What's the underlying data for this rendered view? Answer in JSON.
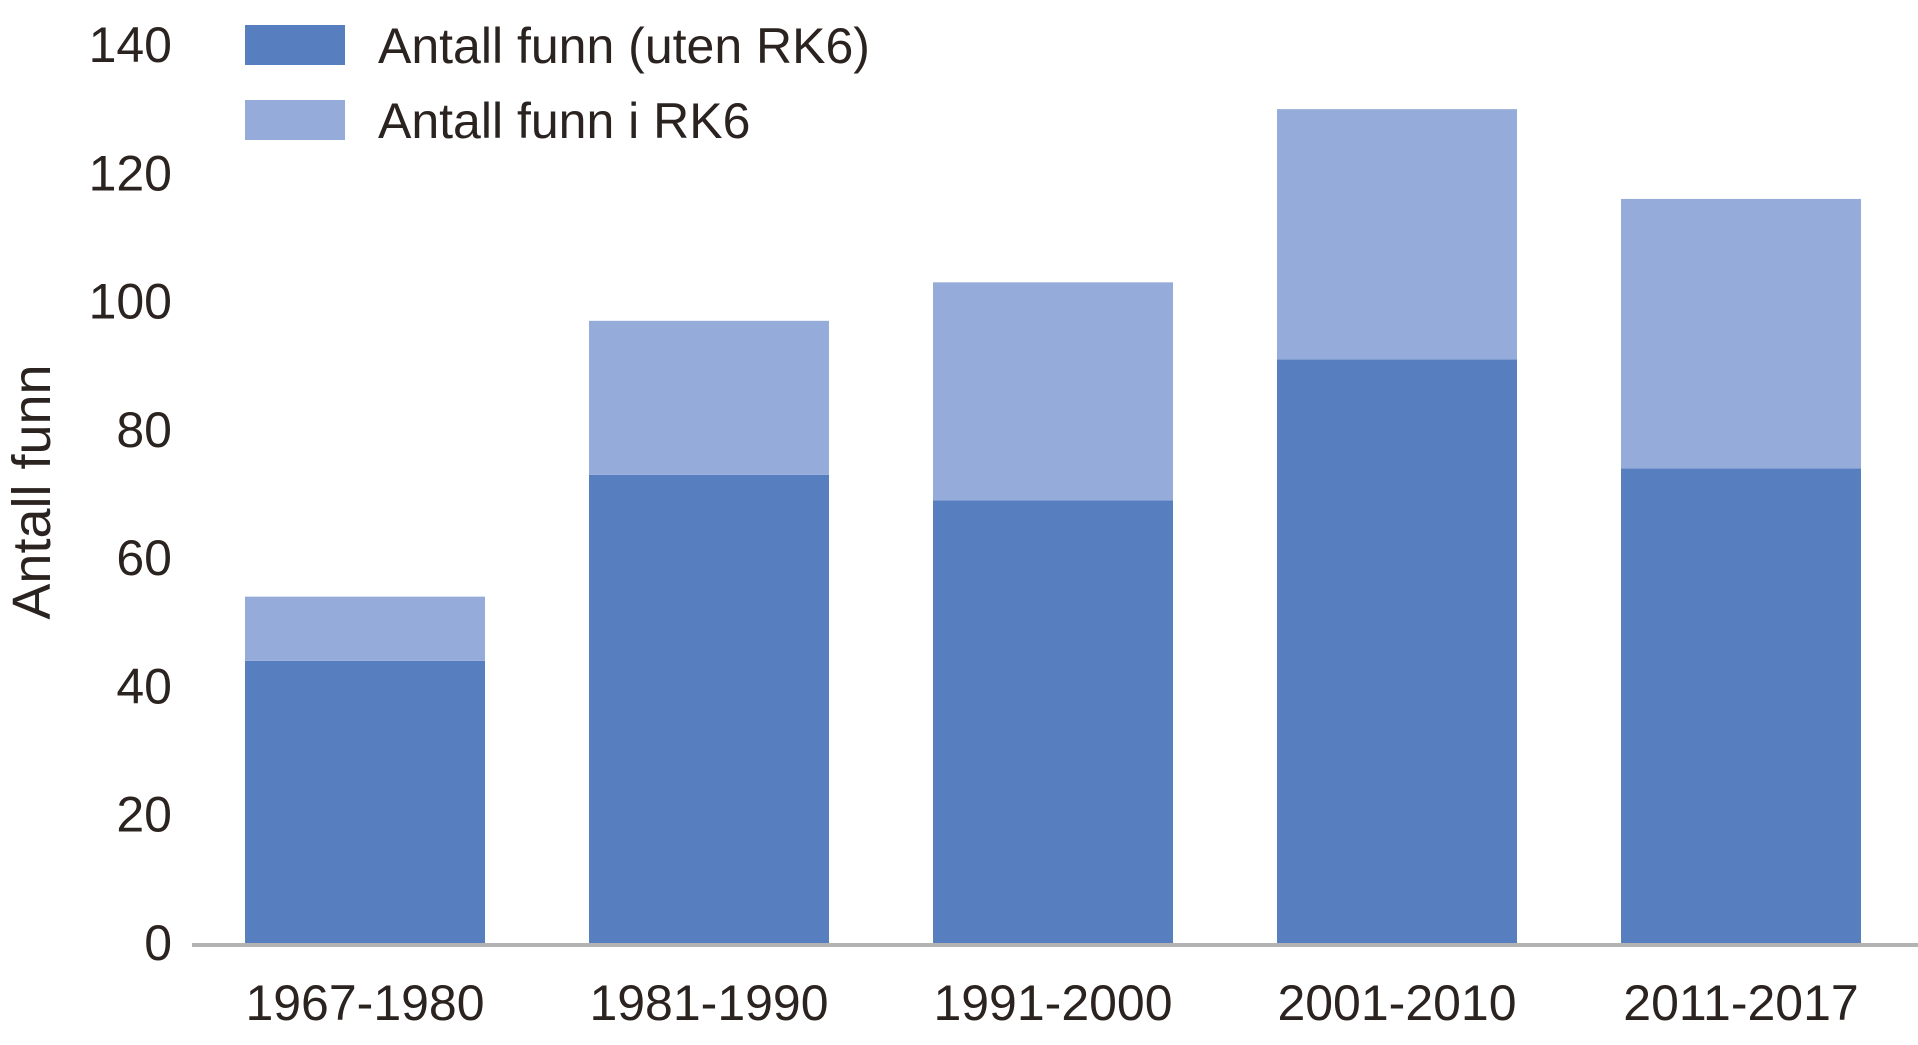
{
  "chart_data": {
    "type": "bar",
    "stacked": true,
    "categories": [
      "1967-1980",
      "1981-1990",
      "1991-2000",
      "2001-2010",
      "2011-2017"
    ],
    "series": [
      {
        "name": "Antall funn (uten RK6)",
        "color": "#577fbf",
        "values": [
          44,
          73,
          69,
          91,
          74
        ]
      },
      {
        "name": "Antall funn i RK6",
        "color": "#95acda",
        "values": [
          10,
          24,
          34,
          39,
          42
        ]
      }
    ],
    "title": "",
    "xlabel": "",
    "ylabel": "Antall funn",
    "ylim": [
      0,
      140
    ],
    "yticks": [
      "0",
      "20",
      "40",
      "60",
      "80",
      "100",
      "120",
      "140"
    ],
    "grid": false,
    "legend_position": "top-left",
    "axis_color": "#b3b3b3",
    "text_color": "#2b2320"
  }
}
